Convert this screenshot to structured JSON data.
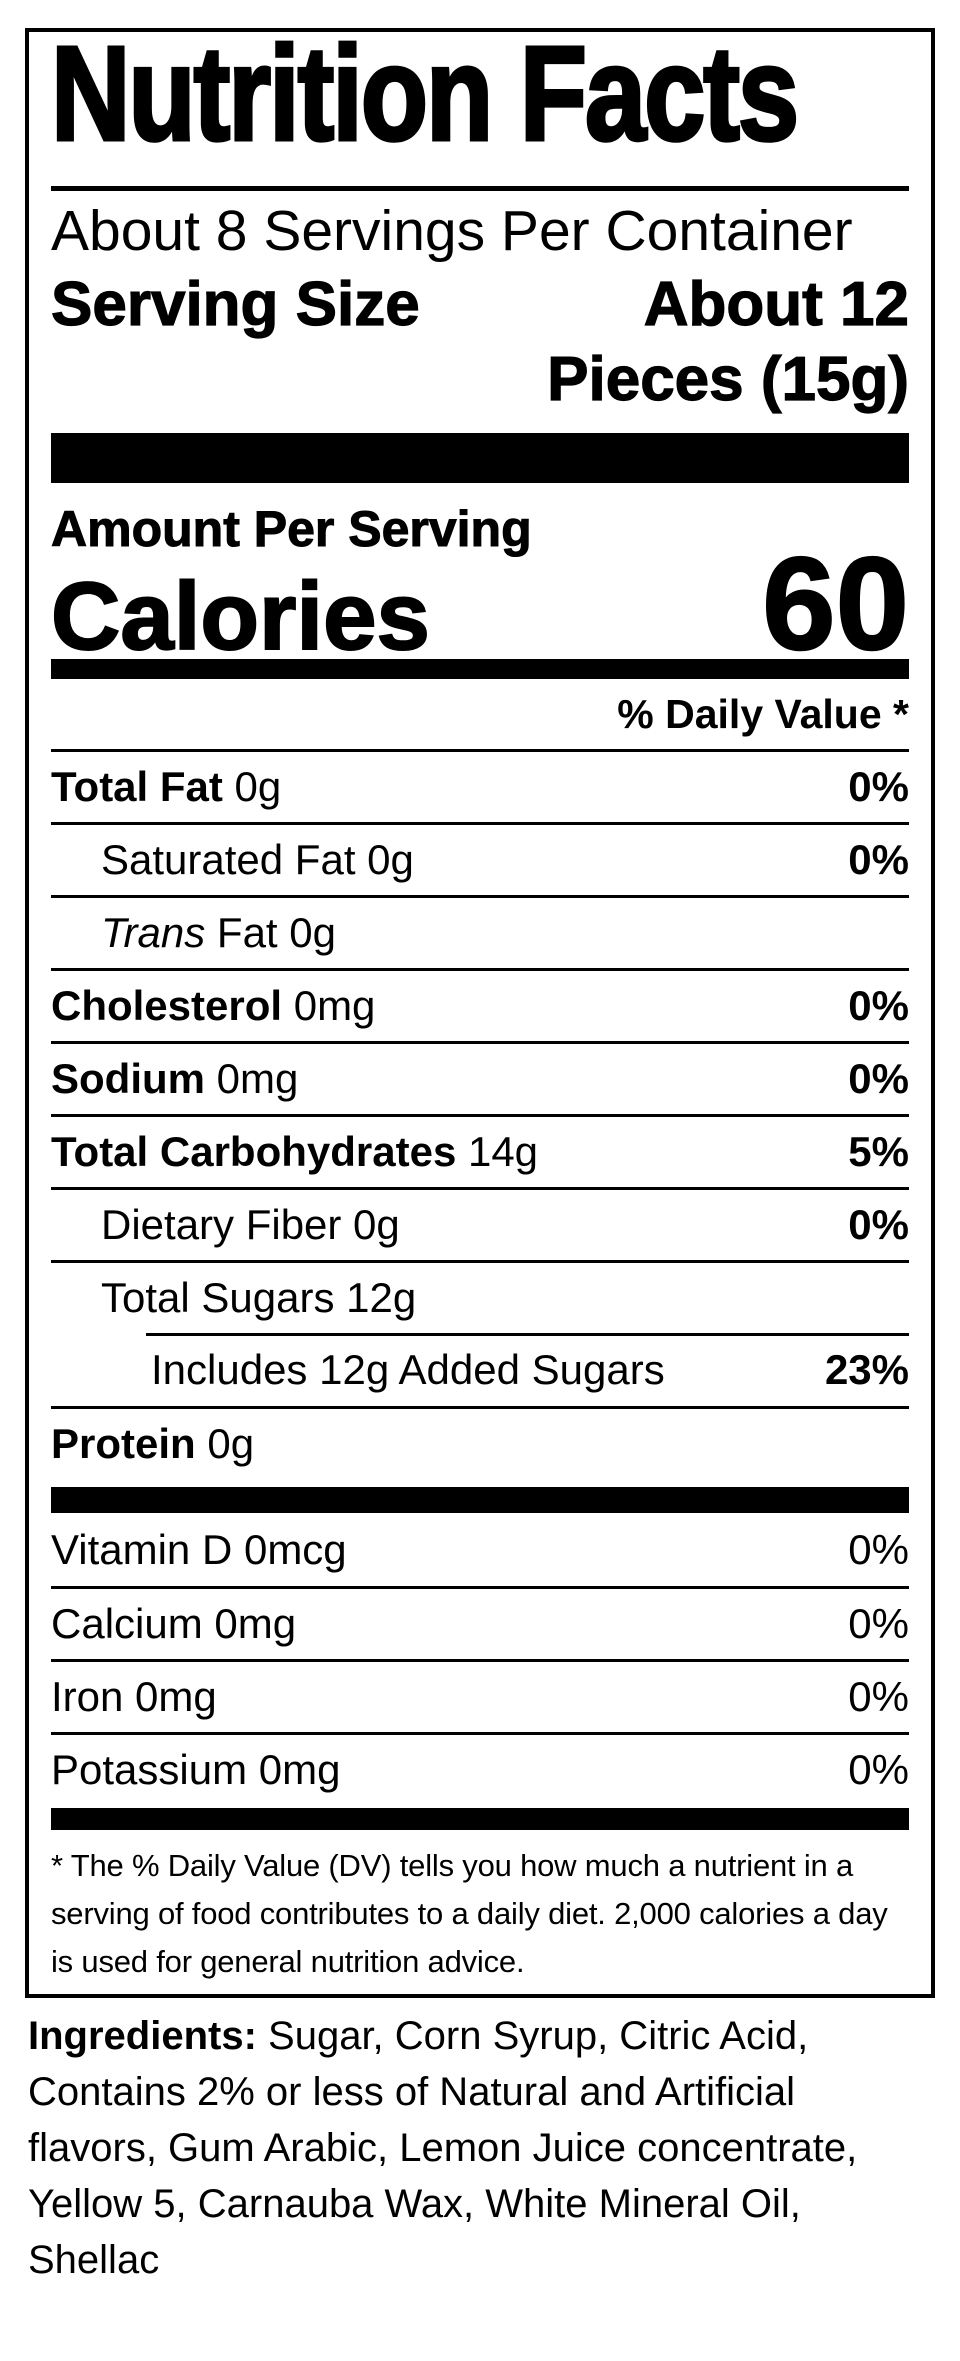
{
  "colors": {
    "text": "#000000",
    "background": "#ffffff",
    "bar": "#000000"
  },
  "label": {
    "title": "Nutrition Facts",
    "servings_per_container": "About 8 Servings Per Container",
    "serving_size_label": "Serving Size",
    "serving_size_value_lines": [
      "About 12",
      "Pieces (15g)"
    ],
    "amount_per_serving": "Amount Per Serving",
    "calories_label": "Calories",
    "calories_value": "60",
    "daily_value_header": "% Daily Value *",
    "nutrient_rows": [
      {
        "italic": "",
        "label": "Total Fat",
        "amount": " 0g",
        "dv": "0%"
      },
      {
        "italic": "",
        "label": "Saturated Fat 0g",
        "amount": "",
        "dv": "0%"
      },
      {
        "italic": "Trans",
        "label": " Fat 0g",
        "amount": "",
        "dv": ""
      },
      {
        "italic": "",
        "label": "Cholesterol",
        "amount": " 0mg",
        "dv": "0%"
      },
      {
        "italic": "",
        "label": "Sodium",
        "amount": " 0mg",
        "dv": "0%"
      },
      {
        "italic": "",
        "label": "Total Carbohydrates",
        "amount": " 14g",
        "dv": "5%"
      },
      {
        "italic": "",
        "label": "Dietary Fiber 0g",
        "amount": "",
        "dv": "0%"
      },
      {
        "italic": "",
        "label": "Total Sugars 12g",
        "amount": "",
        "dv": ""
      },
      {
        "italic": "",
        "label": "Includes 12g Added Sugars",
        "amount": "",
        "dv": "23%"
      },
      {
        "italic": "",
        "label": "Protein",
        "amount": " 0g",
        "dv": ""
      }
    ],
    "vitamin_rows": [
      {
        "label": "Vitamin D 0mcg",
        "dv": "0%"
      },
      {
        "label": "Calcium 0mg",
        "dv": "0%"
      },
      {
        "label": "Iron 0mg",
        "dv": "0%"
      },
      {
        "label": "Potassium 0mg",
        "dv": "0%"
      }
    ],
    "footnote": "* The % Daily Value (DV) tells you how much a nutrient in a serving of food contributes to a daily diet. 2,000 calories a day is used for general nutrition advice."
  },
  "ingredients": {
    "label": "Ingredients:",
    "text": " Sugar, Corn Syrup, Citric Acid, Contains 2% or less of Natural and Artificial flavors, Gum Arabic, Lemon Juice concentrate, Yellow 5, Carnauba Wax, White Mineral Oil, Shellac"
  }
}
